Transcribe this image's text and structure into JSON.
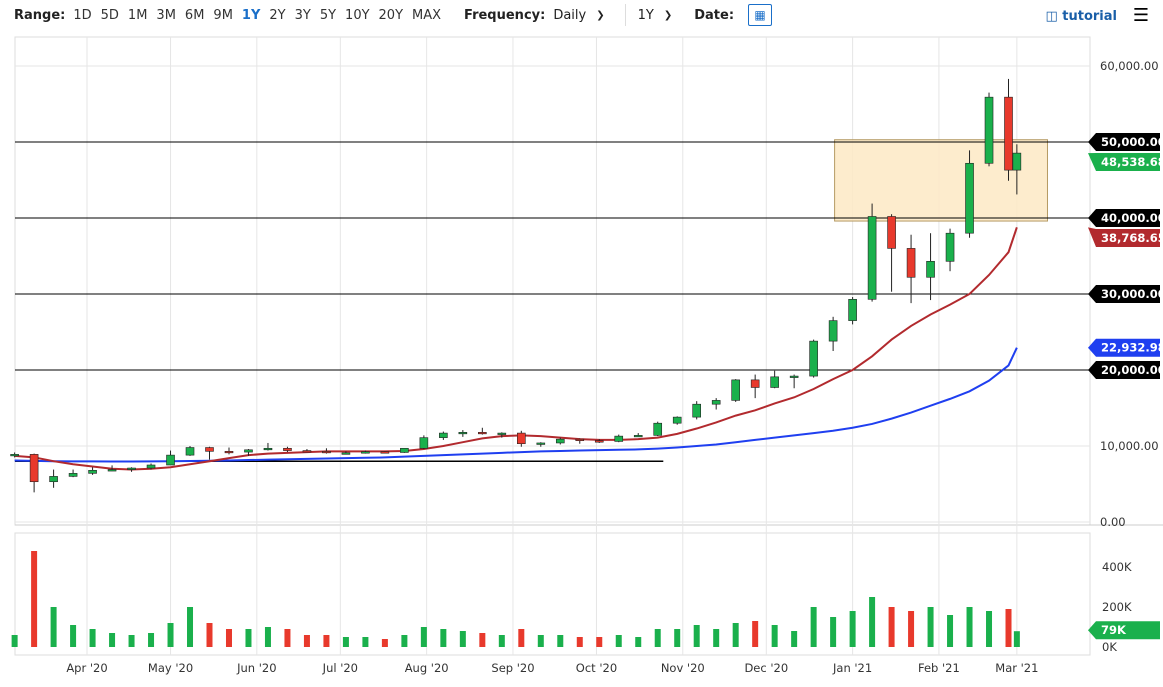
{
  "toolbar": {
    "range_label": "Range:",
    "ranges": [
      "1D",
      "5D",
      "1M",
      "3M",
      "6M",
      "9M",
      "1Y",
      "2Y",
      "3Y",
      "5Y",
      "10Y",
      "20Y",
      "MAX"
    ],
    "active_range": "1Y",
    "frequency_label": "Frequency:",
    "frequency_value": "Daily",
    "period_value": "1Y",
    "date_label": "Date:",
    "calendar_icon": "calendar-icon",
    "tutorial_label": "tutorial",
    "tutorial_icon": "film-icon",
    "menu_icon": "hamburger-icon"
  },
  "chart_data": {
    "type": "candlestick",
    "colors": {
      "up": "#1ab04c",
      "down": "#e8392c",
      "ma_short": "#b22a2e",
      "ma_long": "#1f3ff0",
      "box_fill": "#fde9c4",
      "box_stroke": "#b59a63"
    },
    "y_ticks": [
      "0.00",
      "10,000.00",
      "60,000.00"
    ],
    "y_tick_values": [
      0,
      10000,
      60000
    ],
    "ylim": [
      0,
      62000
    ],
    "volume_ticks": [
      "0K",
      "200K",
      "400K"
    ],
    "volume_tick_values": [
      0,
      200,
      400
    ],
    "x_ticks": [
      {
        "date": "2020-04-01",
        "label": "Apr '20"
      },
      {
        "date": "2020-05-01",
        "label": "May '20"
      },
      {
        "date": "2020-06-01",
        "label": "Jun '20"
      },
      {
        "date": "2020-07-01",
        "label": "Jul '20"
      },
      {
        "date": "2020-08-01",
        "label": "Aug '20"
      },
      {
        "date": "2020-09-01",
        "label": "Sep '20"
      },
      {
        "date": "2020-10-01",
        "label": "Oct '20"
      },
      {
        "date": "2020-11-01",
        "label": "Nov '20"
      },
      {
        "date": "2020-12-01",
        "label": "Dec '20"
      },
      {
        "date": "2021-01-01",
        "label": "Jan '21"
      },
      {
        "date": "2021-02-01",
        "label": "Feb '21"
      },
      {
        "date": "2021-03-01",
        "label": "Mar '21"
      }
    ],
    "columns": [
      "date",
      "open",
      "high",
      "low",
      "close",
      "volume_k"
    ],
    "candles": [
      [
        "2020-03-06",
        8700,
        9150,
        8500,
        8900,
        60
      ],
      [
        "2020-03-13",
        8900,
        9000,
        3900,
        5300,
        480
      ],
      [
        "2020-03-20",
        5300,
        6900,
        4500,
        6000,
        200
      ],
      [
        "2020-03-27",
        6000,
        6900,
        5900,
        6400,
        110
      ],
      [
        "2020-04-03",
        6400,
        7200,
        6200,
        6800,
        90
      ],
      [
        "2020-04-10",
        6800,
        7450,
        6700,
        6900,
        70
      ],
      [
        "2020-04-17",
        6900,
        7200,
        6600,
        7100,
        60
      ],
      [
        "2020-04-24",
        7100,
        7700,
        6900,
        7500,
        70
      ],
      [
        "2020-05-01",
        7500,
        9400,
        7500,
        8800,
        120
      ],
      [
        "2020-05-08",
        8800,
        10000,
        8700,
        9800,
        200
      ],
      [
        "2020-05-15",
        9800,
        9900,
        8200,
        9300,
        120
      ],
      [
        "2020-05-22",
        9300,
        9800,
        8900,
        9200,
        90
      ],
      [
        "2020-05-29",
        9200,
        9600,
        8700,
        9500,
        90
      ],
      [
        "2020-06-05",
        9500,
        10400,
        9400,
        9700,
        100
      ],
      [
        "2020-06-12",
        9700,
        9900,
        9200,
        9400,
        90
      ],
      [
        "2020-06-19",
        9400,
        9600,
        9200,
        9300,
        60
      ],
      [
        "2020-06-26",
        9300,
        9700,
        9000,
        9100,
        60
      ],
      [
        "2020-07-03",
        9100,
        9300,
        8900,
        9100,
        50
      ],
      [
        "2020-07-10",
        9100,
        9400,
        9000,
        9250,
        50
      ],
      [
        "2020-07-17",
        9250,
        9300,
        9100,
        9150,
        40
      ],
      [
        "2020-07-24",
        9150,
        9700,
        9100,
        9700,
        60
      ],
      [
        "2020-07-31",
        9700,
        11400,
        9600,
        11100,
        100
      ],
      [
        "2020-08-07",
        11100,
        11900,
        10800,
        11700,
        90
      ],
      [
        "2020-08-14",
        11700,
        12100,
        11200,
        11800,
        80
      ],
      [
        "2020-08-21",
        11800,
        12400,
        11500,
        11600,
        70
      ],
      [
        "2020-08-28",
        11600,
        11800,
        11100,
        11700,
        60
      ],
      [
        "2020-09-04",
        11700,
        12000,
        9900,
        10300,
        90
      ],
      [
        "2020-09-11",
        10300,
        10500,
        9900,
        10400,
        60
      ],
      [
        "2020-09-18",
        10400,
        11100,
        10200,
        10900,
        60
      ],
      [
        "2020-09-25",
        10900,
        11000,
        10300,
        10700,
        50
      ],
      [
        "2020-10-02",
        10700,
        10900,
        10400,
        10600,
        50
      ],
      [
        "2020-10-09",
        10600,
        11500,
        10500,
        11300,
        60
      ],
      [
        "2020-10-16",
        11300,
        11700,
        11200,
        11400,
        50
      ],
      [
        "2020-10-23",
        11400,
        13200,
        11300,
        13000,
        90
      ],
      [
        "2020-10-30",
        13000,
        13900,
        12800,
        13800,
        90
      ],
      [
        "2020-11-06",
        13800,
        15900,
        13500,
        15500,
        110
      ],
      [
        "2020-11-13",
        15500,
        16300,
        14800,
        16000,
        90
      ],
      [
        "2020-11-20",
        16000,
        18800,
        15800,
        18700,
        120
      ],
      [
        "2020-11-27",
        18700,
        19400,
        16300,
        17700,
        130
      ],
      [
        "2020-12-04",
        17700,
        19900,
        17600,
        19100,
        110
      ],
      [
        "2020-12-11",
        19100,
        19400,
        17600,
        19200,
        80
      ],
      [
        "2020-12-18",
        19200,
        24000,
        19000,
        23800,
        200
      ],
      [
        "2020-12-25",
        23800,
        27000,
        22500,
        26500,
        150
      ],
      [
        "2021-01-01",
        26500,
        29600,
        26000,
        29300,
        180
      ],
      [
        "2021-01-08",
        29300,
        41900,
        29000,
        40200,
        250
      ],
      [
        "2021-01-15",
        40200,
        40500,
        30300,
        36000,
        200
      ],
      [
        "2021-01-22",
        36000,
        37800,
        28800,
        32200,
        180
      ],
      [
        "2021-01-29",
        32200,
        38000,
        29200,
        34300,
        200
      ],
      [
        "2021-02-05",
        34300,
        38600,
        33000,
        38000,
        160
      ],
      [
        "2021-02-12",
        38000,
        48900,
        37400,
        47200,
        200
      ],
      [
        "2021-02-19",
        47200,
        56500,
        46800,
        55900,
        180
      ],
      [
        "2021-02-26",
        55900,
        58300,
        44900,
        46300,
        190
      ],
      [
        "2021-03-01",
        46300,
        49700,
        43100,
        48538.68,
        79
      ]
    ],
    "ma_short": [
      8700,
      8500,
      8000,
      7600,
      7300,
      7000,
      6900,
      7000,
      7200,
      7600,
      8000,
      8400,
      8800,
      9000,
      9100,
      9200,
      9300,
      9300,
      9300,
      9300,
      9350,
      9600,
      10000,
      10500,
      11000,
      11300,
      11400,
      11300,
      11100,
      10900,
      10800,
      10800,
      10900,
      11100,
      11600,
      12300,
      13100,
      14000,
      14700,
      15600,
      16400,
      17500,
      18800,
      20000,
      21800,
      24000,
      25800,
      27300,
      28600,
      30000,
      32500,
      35500,
      38768.65
    ],
    "ma_long": [
      8100,
      8050,
      8000,
      7980,
      7970,
      7960,
      7960,
      7970,
      7990,
      8020,
      8060,
      8100,
      8150,
      8200,
      8250,
      8300,
      8350,
      8400,
      8450,
      8500,
      8600,
      8700,
      8800,
      8900,
      9000,
      9100,
      9200,
      9300,
      9350,
      9400,
      9450,
      9500,
      9550,
      9650,
      9800,
      10000,
      10200,
      10500,
      10800,
      11100,
      11400,
      11700,
      12000,
      12400,
      12900,
      13600,
      14400,
      15300,
      16200,
      17200,
      18600,
      20600,
      22932.98
    ],
    "horizontal_levels": [
      50000,
      40000,
      30000,
      20000
    ],
    "support_line": {
      "from": "2020-03-01",
      "to": "2020-10-25",
      "value": 8000
    },
    "zone": {
      "from": "2021-01-01",
      "to": "2021-03-12",
      "low": 39600,
      "high": 50300
    },
    "price_tags": [
      {
        "value": 50000,
        "label": "50,000.00",
        "color": "#000000"
      },
      {
        "value": 40000,
        "label": "40,000.00",
        "color": "#000000"
      },
      {
        "value": 30000,
        "label": "30,000.00",
        "color": "#000000"
      },
      {
        "value": 20000,
        "label": "20,000.00",
        "color": "#000000"
      },
      {
        "value": 22932.98,
        "label": "22,932.98",
        "color": "#1f3ff0"
      },
      {
        "value": 38768.65,
        "label": "38,768.65",
        "color": "#b22a2e"
      },
      {
        "value": 48538.68,
        "label": "48,538.68",
        "color": "#1ab04c"
      }
    ],
    "volume_tag": {
      "value": 79,
      "label": "79K",
      "color": "#1ab04c"
    }
  }
}
